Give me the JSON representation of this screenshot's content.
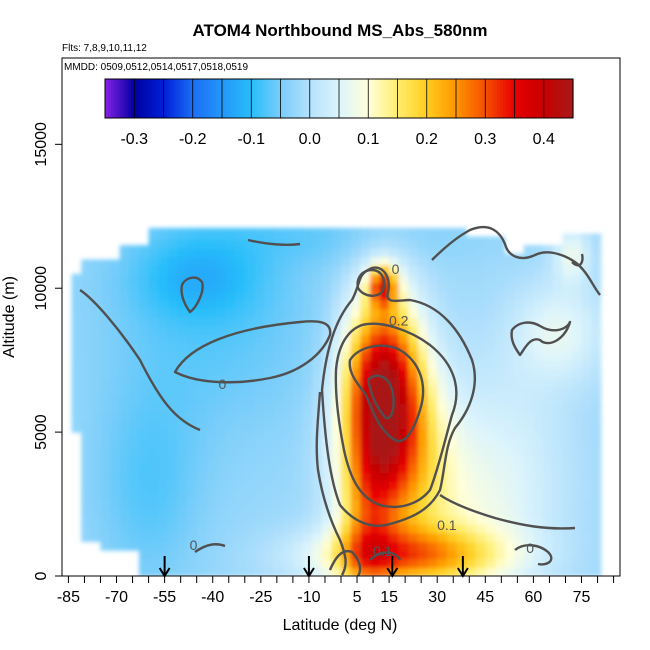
{
  "chart_data": {
    "type": "heatmap",
    "title": "ATOM4 Northbound MS_Abs_580nm",
    "flights_label": "Flts: 7,8,9,10,11,12",
    "dates_label": "MMDD: 0509,0512,0514,0517,0518,0519",
    "xlabel": "Latitude (deg N)",
    "ylabel": "Altitude (m)",
    "xlim": [
      -87,
      87
    ],
    "ylim": [
      0,
      18000
    ],
    "x_tick_labels": [
      "-85",
      "-70",
      "-55",
      "-40",
      "-25",
      "-10",
      "5",
      "15",
      "30",
      "45",
      "60",
      "75"
    ],
    "x_ticks": [
      -85,
      -70,
      -55,
      -40,
      -25,
      -10,
      5,
      15,
      30,
      45,
      60,
      75
    ],
    "y_ticks": [
      0,
      5000,
      10000,
      15000
    ],
    "y_tick_labels": [
      "0",
      "5000",
      "10000",
      "15000"
    ],
    "colorbar": {
      "range": [
        -0.35,
        0.45
      ],
      "ticks": [
        -0.3,
        -0.2,
        -0.1,
        0.0,
        0.1,
        0.2,
        0.3,
        0.4
      ],
      "tick_labels": [
        "-0.3",
        "-0.2",
        "-0.1",
        "0.0",
        "0.1",
        "0.2",
        "0.3",
        "0.4"
      ]
    },
    "contour_labels": [
      {
        "text": "0",
        "lat": -37,
        "alt": 6500
      },
      {
        "text": "0",
        "lat": 17,
        "alt": 10500
      },
      {
        "text": "0.2",
        "lat": 18,
        "alt": 8700
      },
      {
        "text": "0.1",
        "lat": 33,
        "alt": 1600
      },
      {
        "text": "0",
        "lat": -46,
        "alt": 900
      },
      {
        "text": "0.1",
        "lat": 13,
        "alt": 700
      },
      {
        "text": "0",
        "lat": 59,
        "alt": 800
      }
    ],
    "profile_latitudes": [
      -55,
      -10,
      16,
      38
    ],
    "grid": false
  }
}
